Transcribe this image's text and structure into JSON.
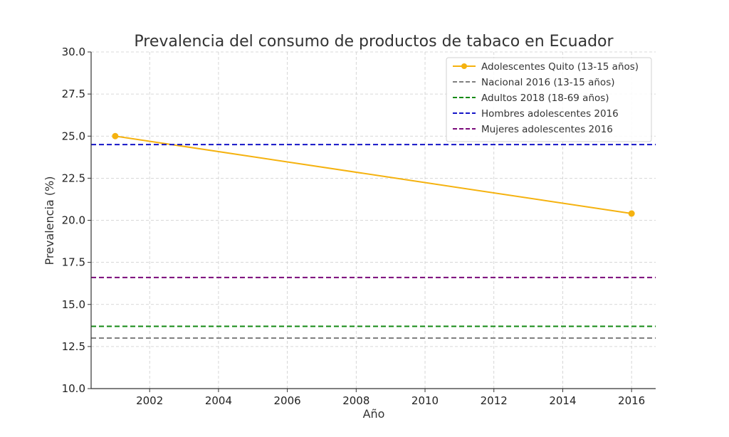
{
  "chart_data": {
    "type": "line",
    "title": "Prevalencia del consumo de productos de tabaco en Ecuador",
    "xlabel": "Año",
    "ylabel": "Prevalencia (%)",
    "xlim": [
      2000.3,
      2016.7
    ],
    "ylim": [
      10.0,
      30.0
    ],
    "x_ticks": [
      2002,
      2004,
      2006,
      2008,
      2010,
      2012,
      2014,
      2016
    ],
    "y_ticks": [
      10.0,
      12.5,
      15.0,
      17.5,
      20.0,
      22.5,
      25.0,
      27.5,
      30.0
    ],
    "x_tick_labels": [
      "2002",
      "2004",
      "2006",
      "2008",
      "2010",
      "2012",
      "2014",
      "2016"
    ],
    "y_tick_labels": [
      "10.0",
      "12.5",
      "15.0",
      "17.5",
      "20.0",
      "22.5",
      "25.0",
      "27.5",
      "30.0"
    ],
    "grid": true,
    "legend_position": "top-right",
    "series": [
      {
        "name": "Adolescentes Quito (13-15 años)",
        "style": "solid-marker",
        "color": "#f5b20f",
        "x": [
          2001,
          2016
        ],
        "y": [
          25.0,
          20.4
        ]
      },
      {
        "name": "Nacional 2016 (13-15 años)",
        "style": "dashed-hline",
        "color": "#808080",
        "y": 13.0
      },
      {
        "name": "Adultos 2018 (18-69 años)",
        "style": "dashed-hline",
        "color": "#138a13",
        "y": 13.7
      },
      {
        "name": "Hombres adolescentes 2016",
        "style": "dashed-hline",
        "color": "#1515c8",
        "y": 24.5
      },
      {
        "name": "Mujeres adolescentes 2016",
        "style": "dashed-hline",
        "color": "#7a0a7a",
        "y": 16.6
      }
    ]
  }
}
